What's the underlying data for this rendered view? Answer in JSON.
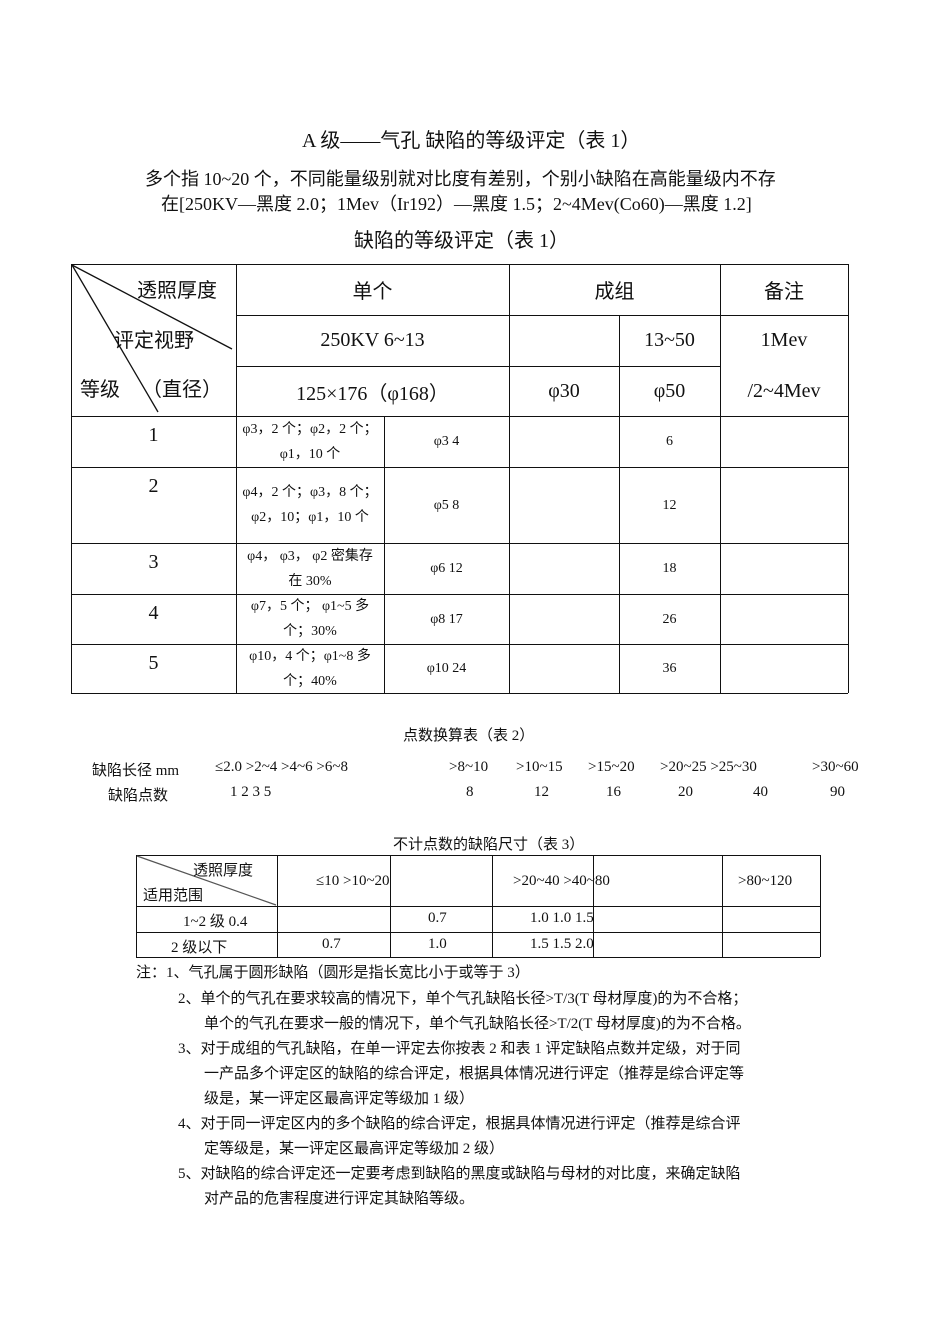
{
  "title": "A 级——气孔  缺陷的等级评定（表 1）",
  "intro": [
    "多个指 10~20 个，不同能量级别就对比度有差别，个别小缺陷在高能量级内不存",
    "在[250KV—黑度 2.0；1Mev（Ir192）—黑度 1.5；2~4Mev(Co60)—黑度 1.2]"
  ],
  "table1": {
    "caption": "缺陷的等级评定（表 1）",
    "corner": {
      "top": "透照厚度",
      "middle": "评定视野",
      "bottom_left": "等级",
      "bottom_right": "（直径）"
    },
    "h_single": "单个",
    "h_group": "成组",
    "h_remark": "备注",
    "h2_single": "250KV 6~13",
    "h2_group": "13~50",
    "h2_remark": [
      "1Mev",
      "/2~4Mev"
    ],
    "h3_single": "125×176（φ168）",
    "h3_g1": "φ30",
    "h3_g2": "φ50",
    "rows": [
      {
        "grade": "1",
        "single": "φ3，2 个；φ2，2 个；φ1，10 个",
        "single2": "φ3 4",
        "group2": "6"
      },
      {
        "grade": "2",
        "single": "φ4，2 个；φ3，8 个；φ2，10；φ1，10 个",
        "single2": "φ5 8",
        "group2": "12"
      },
      {
        "grade": "3",
        "single": "φ4， φ3， φ2 密集存在 30%",
        "single2": "φ6 12",
        "group2": "18"
      },
      {
        "grade": "4",
        "single": "φ7，5 个； φ1~5 多个；30%",
        "single2": "φ8 17",
        "group2": "26"
      },
      {
        "grade": "5",
        "single": "φ10，4 个；φ1~8 多个；40%",
        "single2": "φ10 24",
        "group2": "36"
      }
    ]
  },
  "table2": {
    "caption": "点数换算表（表 2）",
    "row1_label": "缺陷长径 mm",
    "row1": [
      "≤2.0 >2~4 >4~6 >6~8",
      ">8~10",
      ">10~15",
      ">15~20",
      ">20~25 >25~30",
      ">30~60"
    ],
    "row2_label": "缺陷点数",
    "row2": [
      "1 2 3 5",
      "8",
      "12",
      "16",
      "20",
      "40",
      "90"
    ]
  },
  "table3": {
    "caption": "不计点数的缺陷尺寸（表 3）",
    "corner_top": "透照厚度",
    "corner_bottom": "适用范围",
    "headers": [
      "≤10 >10~20",
      ">20~40 >40~80",
      ">80~120"
    ],
    "row1": {
      "label": "1~2 级 0.4",
      "v1": "0.7",
      "v2": "1.0 1.0 1.5"
    },
    "row2": {
      "label": "2 级以下",
      "v0": "0.7",
      "v1": "1.0",
      "v2": "1.5 1.5 2.0"
    }
  },
  "notes": [
    "注：1、气孔属于圆形缺陷（圆形是指长宽比小于或等于 3）",
    "2、单个的气孔在要求较高的情况下，单个气孔缺陷长径>T/3(T 母材厚度)的为不合格；",
    "单个的气孔在要求一般的情况下，单个气孔缺陷长径>T/2(T 母材厚度)的为不合格。",
    "3、对于成组的气孔缺陷，在单一评定去你按表 2 和表 1 评定缺陷点数并定级，对于同",
    "一产品多个评定区的缺陷的综合评定，根据具体情况进行评定（推荐是综合评定等",
    "级是，某一评定区最高评定等级加 1 级）",
    "4、对于同一评定区内的多个缺陷的综合评定，根据具体情况进行评定（推荐是综合评",
    "定等级是，某一评定区最高评定等级加 2 级）",
    "5、对缺陷的综合评定还一定要考虑到缺陷的黑度或缺陷与母材的对比度，来确定缺陷",
    "对产品的危害程度进行评定其缺陷等级。"
  ]
}
